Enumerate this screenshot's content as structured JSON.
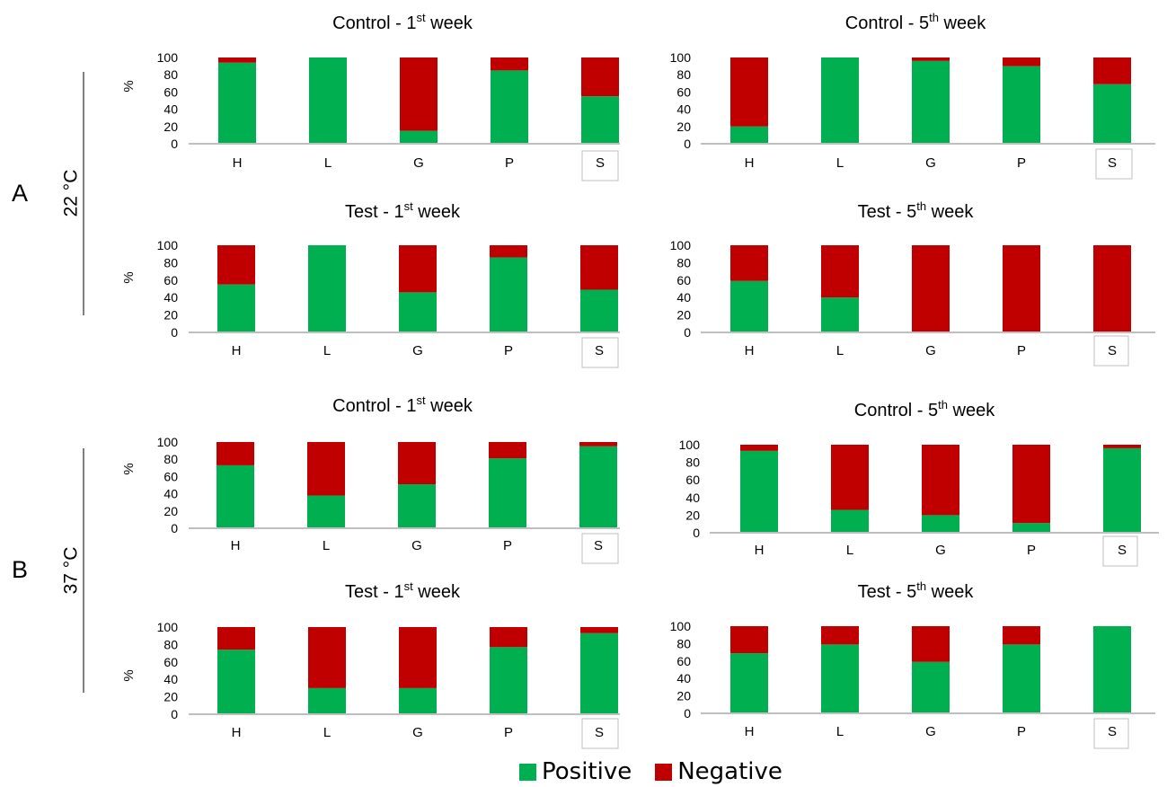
{
  "colors": {
    "positive": "#00b050",
    "negative": "#c00000",
    "axis": "#bfbfbf",
    "box": "#bfbfbf"
  },
  "panels": [
    {
      "label": "A",
      "temperature": "22 °C"
    },
    {
      "label": "B",
      "temperature": "37 °C"
    }
  ],
  "legend": [
    {
      "label": "Positive",
      "color": "#00b050"
    },
    {
      "label": "Negative",
      "color": "#c00000"
    }
  ],
  "chart_data": [
    {
      "type": "bar",
      "stacked": true,
      "group": "A",
      "title": "Control - 1",
      "title_sup": "st",
      "title_tail": " week",
      "ylabel": "%",
      "ylim": [
        0,
        100
      ],
      "yticks": [
        0,
        20,
        40,
        60,
        80,
        100
      ],
      "categories": [
        "H",
        "L",
        "G",
        "P",
        "S"
      ],
      "boxed_category": "S",
      "series": [
        {
          "name": "Positive",
          "values": [
            94,
            100,
            15,
            85,
            55
          ]
        },
        {
          "name": "Negative",
          "values": [
            6,
            0,
            85,
            15,
            45
          ]
        }
      ]
    },
    {
      "type": "bar",
      "stacked": true,
      "group": "A",
      "title": "Control - 5",
      "title_sup": "th",
      "title_tail": " week",
      "ylabel": "",
      "ylim": [
        0,
        100
      ],
      "yticks": [
        0,
        20,
        40,
        60,
        80,
        100
      ],
      "categories": [
        "H",
        "L",
        "G",
        "P",
        "S"
      ],
      "boxed_category": "S",
      "series": [
        {
          "name": "Positive",
          "values": [
            20,
            100,
            96,
            90,
            69
          ]
        },
        {
          "name": "Negative",
          "values": [
            80,
            0,
            4,
            10,
            31
          ]
        }
      ]
    },
    {
      "type": "bar",
      "stacked": true,
      "group": "A",
      "title": "Test - 1",
      "title_sup": "st",
      "title_tail": " week",
      "ylabel": "%",
      "ylim": [
        0,
        100
      ],
      "yticks": [
        0,
        20,
        40,
        60,
        80,
        100
      ],
      "categories": [
        "H",
        "L",
        "G",
        "P",
        "S"
      ],
      "boxed_category": "S",
      "series": [
        {
          "name": "Positive",
          "values": [
            55,
            100,
            46,
            86,
            49
          ]
        },
        {
          "name": "Negative",
          "values": [
            45,
            0,
            54,
            14,
            51
          ]
        }
      ]
    },
    {
      "type": "bar",
      "stacked": true,
      "group": "A",
      "title": "Test - 5",
      "title_sup": "th",
      "title_tail": " week",
      "ylabel": "",
      "ylim": [
        0,
        100
      ],
      "yticks": [
        0,
        20,
        40,
        60,
        80,
        100
      ],
      "categories": [
        "H",
        "L",
        "G",
        "P",
        "S"
      ],
      "boxed_category": "S",
      "series": [
        {
          "name": "Positive",
          "values": [
            59,
            40,
            0,
            0,
            0
          ]
        },
        {
          "name": "Negative",
          "values": [
            41,
            60,
            100,
            100,
            100
          ]
        }
      ]
    },
    {
      "type": "bar",
      "stacked": true,
      "group": "B",
      "title": "Control - 1",
      "title_sup": "st",
      "title_tail": " week",
      "ylabel": "%",
      "ylim": [
        0,
        100
      ],
      "yticks": [
        0,
        20,
        40,
        60,
        80,
        100
      ],
      "categories": [
        "H",
        "L",
        "G",
        "P",
        "S"
      ],
      "boxed_category": "S",
      "series": [
        {
          "name": "Positive",
          "values": [
            73,
            38,
            51,
            81,
            95
          ]
        },
        {
          "name": "Negative",
          "values": [
            27,
            62,
            49,
            19,
            5
          ]
        }
      ]
    },
    {
      "type": "bar",
      "stacked": true,
      "group": "B",
      "title": "Control - 5",
      "title_sup": "th",
      "title_tail": " week",
      "ylabel": "",
      "ylim": [
        0,
        100
      ],
      "yticks": [
        0,
        20,
        40,
        60,
        80,
        100
      ],
      "categories": [
        "H",
        "L",
        "G",
        "P",
        "S"
      ],
      "boxed_category": "S",
      "series": [
        {
          "name": "Positive",
          "values": [
            93,
            26,
            20,
            11,
            96
          ]
        },
        {
          "name": "Negative",
          "values": [
            7,
            74,
            80,
            89,
            4
          ]
        }
      ]
    },
    {
      "type": "bar",
      "stacked": true,
      "group": "B",
      "title": "Test - 1",
      "title_sup": "st",
      "title_tail": " week",
      "ylabel": "%",
      "ylim": [
        0,
        100
      ],
      "yticks": [
        0,
        20,
        40,
        60,
        80,
        100
      ],
      "categories": [
        "H",
        "L",
        "G",
        "P",
        "S"
      ],
      "boxed_category": "S",
      "series": [
        {
          "name": "Positive",
          "values": [
            74,
            30,
            30,
            77,
            93
          ]
        },
        {
          "name": "Negative",
          "values": [
            26,
            70,
            70,
            23,
            7
          ]
        }
      ]
    },
    {
      "type": "bar",
      "stacked": true,
      "group": "B",
      "title": "Test - 5",
      "title_sup": "th",
      "title_tail": " week",
      "ylabel": "",
      "ylim": [
        0,
        100
      ],
      "yticks": [
        0,
        20,
        40,
        60,
        80,
        100
      ],
      "categories": [
        "H",
        "L",
        "G",
        "P",
        "S"
      ],
      "boxed_category": "S",
      "series": [
        {
          "name": "Positive",
          "values": [
            69,
            79,
            59,
            79,
            100
          ]
        },
        {
          "name": "Negative",
          "values": [
            31,
            21,
            41,
            21,
            0
          ]
        }
      ]
    }
  ]
}
